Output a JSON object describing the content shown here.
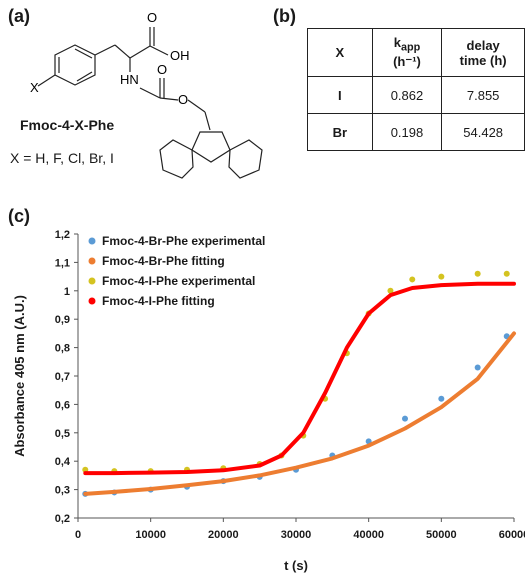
{
  "panel_a": {
    "label": "(a)",
    "compound": "Fmoc-4-X-Phe",
    "substituents": "X = H, F, Cl, Br, I",
    "atom_labels": {
      "x": "X",
      "oh": "OH",
      "o_acid": "O",
      "hn": "HN",
      "o_carbamate": "O",
      "o_ester": "O"
    }
  },
  "panel_b": {
    "label": "(b)",
    "headers": {
      "col1": "X",
      "col2_main": "k",
      "col2_sub": "app",
      "col2_unit": "(h⁻¹)",
      "col3_line1": "delay",
      "col3_line2": "time (h)"
    },
    "rows": [
      {
        "x": "I",
        "kapp": "0.862",
        "delay": "7.855"
      },
      {
        "x": "Br",
        "kapp": "0.198",
        "delay": "54.428"
      }
    ]
  },
  "panel_c": {
    "label": "(c)"
  },
  "chart_data": {
    "type": "scatter",
    "title": "",
    "xlabel": "t (s)",
    "ylabel": "Absorbance 405 nm (A.U.)",
    "xlim": [
      0,
      60000
    ],
    "ylim": [
      0.2,
      1.2
    ],
    "x_ticks": [
      0,
      10000,
      20000,
      30000,
      40000,
      50000,
      60000
    ],
    "y_ticks": [
      0.2,
      0.3,
      0.4,
      0.5,
      0.6,
      0.7,
      0.8,
      0.9,
      1.0,
      1.1,
      1.2
    ],
    "x_tick_labels": [
      "0",
      "10000",
      "20000",
      "30000",
      "40000",
      "50000",
      "60000"
    ],
    "y_tick_labels": [
      "0,2",
      "0,3",
      "0,4",
      "0,5",
      "0,6",
      "0,7",
      "0,8",
      "0,9",
      "1",
      "1,1",
      "1,2"
    ],
    "grid": false,
    "legend_position": "top-left",
    "series": [
      {
        "name": "Fmoc-4-Br-Phe experimental",
        "kind": "scatter",
        "color": "#5b9bd5",
        "x": [
          1000,
          5000,
          10000,
          15000,
          20000,
          25000,
          30000,
          35000,
          40000,
          45000,
          50000,
          55000,
          59000
        ],
        "y": [
          0.285,
          0.29,
          0.3,
          0.31,
          0.33,
          0.345,
          0.37,
          0.42,
          0.47,
          0.55,
          0.62,
          0.73,
          0.84
        ]
      },
      {
        "name": "Fmoc-4-Br-Phe fitting",
        "kind": "line",
        "color": "#ed7d31",
        "x": [
          1000,
          5000,
          10000,
          15000,
          20000,
          25000,
          30000,
          35000,
          40000,
          45000,
          50000,
          55000,
          60000
        ],
        "y": [
          0.285,
          0.292,
          0.302,
          0.315,
          0.33,
          0.35,
          0.377,
          0.41,
          0.455,
          0.515,
          0.59,
          0.69,
          0.85
        ]
      },
      {
        "name": "Fmoc-4-I-Phe experimental",
        "kind": "scatter",
        "color": "#d4c320",
        "x": [
          1000,
          5000,
          10000,
          15000,
          20000,
          25000,
          28000,
          31000,
          34000,
          37000,
          40000,
          43000,
          46000,
          50000,
          55000,
          59000
        ],
        "y": [
          0.37,
          0.365,
          0.365,
          0.37,
          0.375,
          0.39,
          0.42,
          0.49,
          0.62,
          0.78,
          0.92,
          1.0,
          1.04,
          1.05,
          1.06,
          1.06
        ]
      },
      {
        "name": "Fmoc-4-I-Phe fitting",
        "kind": "line",
        "color": "#ff0000",
        "x": [
          1000,
          5000,
          10000,
          15000,
          20000,
          25000,
          28000,
          31000,
          34000,
          37000,
          40000,
          43000,
          46000,
          50000,
          55000,
          60000
        ],
        "y": [
          0.358,
          0.358,
          0.36,
          0.362,
          0.368,
          0.385,
          0.42,
          0.5,
          0.64,
          0.8,
          0.92,
          0.985,
          1.01,
          1.02,
          1.025,
          1.025
        ]
      }
    ]
  }
}
